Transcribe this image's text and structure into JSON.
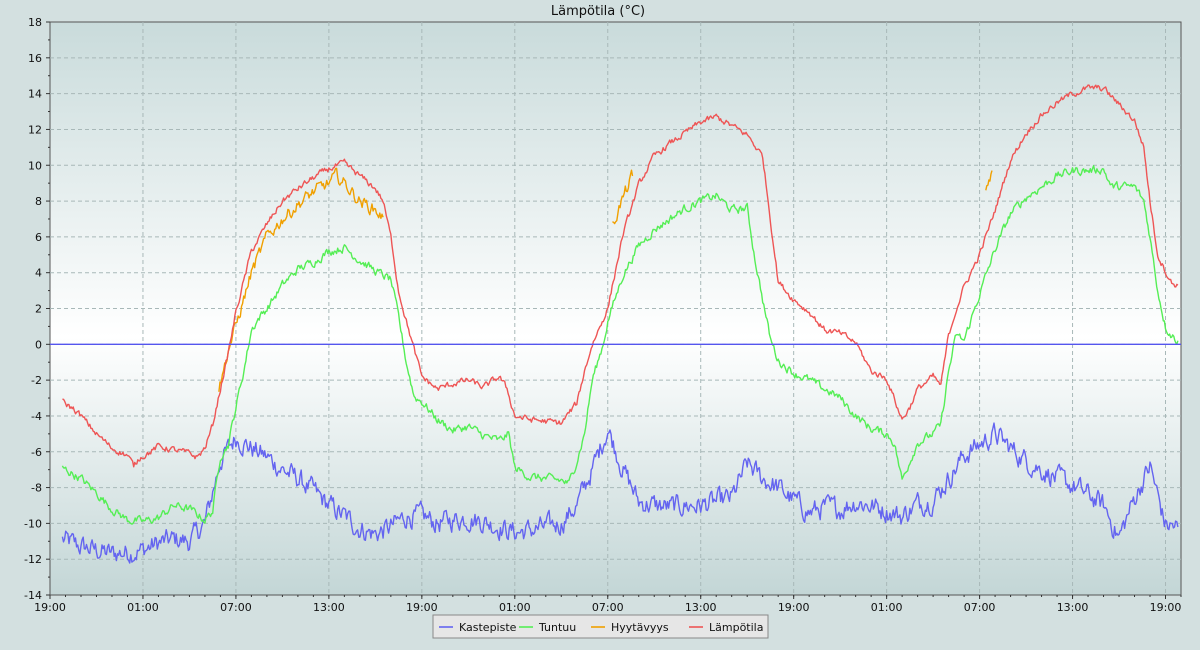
{
  "chart_data": {
    "type": "line",
    "title": "Lämpötila (°C)",
    "xlabel": "",
    "ylabel": "",
    "ylim": [
      -14,
      18
    ],
    "y_ticks": [
      -14,
      -12,
      -10,
      -8,
      -6,
      -4,
      -2,
      0,
      2,
      4,
      6,
      8,
      10,
      12,
      14,
      16,
      18
    ],
    "x_range_hours": [
      0,
      73
    ],
    "x_ticks": [
      {
        "h": 0,
        "label": "19:00"
      },
      {
        "h": 6,
        "label": "01:00"
      },
      {
        "h": 12,
        "label": "07:00"
      },
      {
        "h": 18,
        "label": "13:00"
      },
      {
        "h": 24,
        "label": "19:00"
      },
      {
        "h": 30,
        "label": "01:00"
      },
      {
        "h": 36,
        "label": "07:00"
      },
      {
        "h": 42,
        "label": "13:00"
      },
      {
        "h": 48,
        "label": "19:00"
      },
      {
        "h": 54,
        "label": "01:00"
      },
      {
        "h": 60,
        "label": "07:00"
      },
      {
        "h": 66,
        "label": "13:00"
      },
      {
        "h": 72,
        "label": "19:00"
      }
    ],
    "grid": true,
    "reference_line": {
      "y": 0,
      "color": "#5555ee"
    },
    "legend_position": "bottom-center",
    "series": [
      {
        "name": "Kastepiste",
        "color": "#6464f0",
        "noise": 0.5,
        "points": [
          [
            0.8,
            -10.9
          ],
          [
            2,
            -11.3
          ],
          [
            4,
            -11.7
          ],
          [
            6,
            -11.5
          ],
          [
            7,
            -11.1
          ],
          [
            8,
            -10.9
          ],
          [
            9,
            -11.0
          ],
          [
            10,
            -10.0
          ],
          [
            11,
            -6.5
          ],
          [
            12,
            -5.2
          ],
          [
            13,
            -5.8
          ],
          [
            14,
            -6.3
          ],
          [
            15,
            -7.0
          ],
          [
            16,
            -7.5
          ],
          [
            17,
            -8.2
          ],
          [
            18,
            -9.0
          ],
          [
            19,
            -9.6
          ],
          [
            20,
            -10.3
          ],
          [
            21,
            -10.6
          ],
          [
            22,
            -10.2
          ],
          [
            23,
            -9.6
          ],
          [
            24,
            -9.6
          ],
          [
            25,
            -10.0
          ],
          [
            26,
            -9.8
          ],
          [
            27,
            -9.7
          ],
          [
            28,
            -9.9
          ],
          [
            29,
            -10.2
          ],
          [
            30,
            -10.5
          ],
          [
            31,
            -10.4
          ],
          [
            32,
            -10.2
          ],
          [
            33,
            -10.0
          ],
          [
            34,
            -9.0
          ],
          [
            35,
            -7.0
          ],
          [
            36,
            -4.7
          ],
          [
            37,
            -7.0
          ],
          [
            38,
            -8.8
          ],
          [
            39,
            -9.0
          ],
          [
            40,
            -9.1
          ],
          [
            41,
            -9.0
          ],
          [
            42,
            -9.0
          ],
          [
            43,
            -8.8
          ],
          [
            44,
            -8.6
          ],
          [
            45,
            -6.7
          ],
          [
            46,
            -7.5
          ],
          [
            47,
            -8.0
          ],
          [
            48,
            -8.7
          ],
          [
            49,
            -9.4
          ],
          [
            50,
            -9.1
          ],
          [
            51,
            -9.2
          ],
          [
            52,
            -8.8
          ],
          [
            53,
            -9.0
          ],
          [
            54,
            -9.3
          ],
          [
            55,
            -9.6
          ],
          [
            56,
            -8.9
          ],
          [
            57,
            -8.7
          ],
          [
            58,
            -7.5
          ],
          [
            59,
            -6.2
          ],
          [
            60,
            -5.6
          ],
          [
            61,
            -5.0
          ],
          [
            62,
            -5.8
          ],
          [
            63,
            -6.5
          ],
          [
            64,
            -7.0
          ],
          [
            65,
            -7.5
          ],
          [
            66,
            -7.9
          ],
          [
            67,
            -8.4
          ],
          [
            68,
            -9.0
          ],
          [
            69,
            -10.8
          ],
          [
            70,
            -8.6
          ],
          [
            71,
            -6.8
          ],
          [
            72,
            -10.1
          ],
          [
            72.8,
            -10.2
          ]
        ]
      },
      {
        "name": "Tuntuu",
        "color": "#55ee55",
        "noise": 0.2,
        "points": [
          [
            0.8,
            -6.9
          ],
          [
            2,
            -7.5
          ],
          [
            3,
            -8.3
          ],
          [
            4,
            -9.2
          ],
          [
            5,
            -9.8
          ],
          [
            6,
            -9.9
          ],
          [
            7,
            -9.7
          ],
          [
            8,
            -9.0
          ],
          [
            9,
            -9.2
          ],
          [
            10,
            -9.8
          ],
          [
            10.5,
            -9.3
          ],
          [
            11,
            -6.2
          ],
          [
            11.5,
            -5.6
          ],
          [
            12,
            -3.5
          ],
          [
            12.5,
            -1.5
          ],
          [
            13,
            0.8
          ],
          [
            13.5,
            1.5
          ],
          [
            14,
            2.0
          ],
          [
            15,
            3.3
          ],
          [
            16,
            4.2
          ],
          [
            17,
            4.6
          ],
          [
            18,
            5.2
          ],
          [
            19,
            5.4
          ],
          [
            20,
            4.7
          ],
          [
            21,
            4.1
          ],
          [
            22,
            3.6
          ],
          [
            22.5,
            1.5
          ],
          [
            23,
            -1.0
          ],
          [
            23.5,
            -2.9
          ],
          [
            24,
            -3.2
          ],
          [
            25,
            -4.2
          ],
          [
            26,
            -4.8
          ],
          [
            27,
            -4.6
          ],
          [
            28,
            -5.1
          ],
          [
            29,
            -5.4
          ],
          [
            29.6,
            -5.0
          ],
          [
            30,
            -6.9
          ],
          [
            31,
            -7.4
          ],
          [
            32,
            -7.5
          ],
          [
            33,
            -7.6
          ],
          [
            33.5,
            -7.8
          ],
          [
            34,
            -6.5
          ],
          [
            34.5,
            -5.0
          ],
          [
            35,
            -2.0
          ],
          [
            35.7,
            0.0
          ],
          [
            36,
            1.3
          ],
          [
            37,
            3.9
          ],
          [
            38,
            5.5
          ],
          [
            39,
            6.4
          ],
          [
            40,
            7.0
          ],
          [
            41,
            7.6
          ],
          [
            42,
            8.0
          ],
          [
            43,
            8.3
          ],
          [
            44,
            7.5
          ],
          [
            45,
            7.6
          ],
          [
            45.5,
            4.8
          ],
          [
            46,
            2.5
          ],
          [
            46.5,
            0.3
          ],
          [
            47,
            -0.9
          ],
          [
            48,
            -1.6
          ],
          [
            49,
            -2.0
          ],
          [
            50,
            -2.5
          ],
          [
            51,
            -3.0
          ],
          [
            52,
            -4.0
          ],
          [
            53,
            -4.7
          ],
          [
            54,
            -5.0
          ],
          [
            54.5,
            -5.5
          ],
          [
            55,
            -7.6
          ],
          [
            55.5,
            -6.5
          ],
          [
            56,
            -5.5
          ],
          [
            57,
            -5.0
          ],
          [
            57.5,
            -4.5
          ],
          [
            58,
            -1.5
          ],
          [
            58.5,
            0.5
          ],
          [
            59,
            0.2
          ],
          [
            60,
            2.8
          ],
          [
            61,
            5.3
          ],
          [
            62,
            7.3
          ],
          [
            63,
            8.2
          ],
          [
            64,
            8.8
          ],
          [
            65,
            9.4
          ],
          [
            66,
            9.7
          ],
          [
            67,
            9.7
          ],
          [
            68,
            9.8
          ],
          [
            68.5,
            8.8
          ],
          [
            69,
            8.8
          ],
          [
            70,
            8.8
          ],
          [
            70.6,
            8.0
          ],
          [
            71,
            6.0
          ],
          [
            71.5,
            3.0
          ],
          [
            72,
            1.0
          ],
          [
            72.4,
            0.5
          ],
          [
            72.8,
            0.2
          ]
        ]
      },
      {
        "name": "Hyytävyys",
        "color": "#f0a000",
        "noise": 0.3,
        "points": [
          [
            10.9,
            -2.5
          ],
          [
            11.2,
            -1.5
          ],
          [
            11.5,
            -0.3
          ],
          [
            12,
            1.0
          ],
          [
            12.5,
            2.5
          ],
          [
            13,
            4.0
          ],
          [
            14,
            6.0
          ],
          [
            15,
            7.0
          ],
          [
            16,
            7.8
          ],
          [
            17,
            8.5
          ],
          [
            18,
            9.0
          ],
          [
            18.5,
            9.4
          ],
          [
            19,
            9.0
          ],
          [
            20,
            8.0
          ],
          [
            21,
            7.5
          ],
          [
            21.5,
            7.1
          ]
        ],
        "breaks": [
          [
            36.3,
            6.6
          ],
          [
            36.8,
            7.8
          ],
          [
            37.2,
            8.6
          ],
          [
            37.6,
            9.4
          ]
        ],
        "breaks2": [
          [
            60.4,
            8.6
          ],
          [
            60.8,
            9.7
          ]
        ]
      },
      {
        "name": "Lämpötila",
        "color": "#ee5555",
        "noise": 0.15,
        "points": [
          [
            0.8,
            -3.2
          ],
          [
            1.5,
            -3.6
          ],
          [
            2,
            -4.0
          ],
          [
            3,
            -5.0
          ],
          [
            4,
            -5.8
          ],
          [
            5,
            -6.2
          ],
          [
            5.4,
            -6.8
          ],
          [
            5.8,
            -6.3
          ],
          [
            6.5,
            -6.0
          ],
          [
            7,
            -5.7
          ],
          [
            8,
            -5.9
          ],
          [
            9,
            -6.1
          ],
          [
            9.5,
            -6.3
          ],
          [
            10,
            -5.8
          ],
          [
            10.5,
            -4.5
          ],
          [
            11,
            -2.5
          ],
          [
            11.5,
            -0.5
          ],
          [
            12,
            1.8
          ],
          [
            12.5,
            3.5
          ],
          [
            13,
            5.2
          ],
          [
            14,
            6.7
          ],
          [
            15,
            8.0
          ],
          [
            16,
            8.7
          ],
          [
            17,
            9.3
          ],
          [
            18,
            9.8
          ],
          [
            19,
            10.1
          ],
          [
            20,
            9.4
          ],
          [
            21,
            8.7
          ],
          [
            21.5,
            8.0
          ],
          [
            22,
            6.0
          ],
          [
            22.5,
            3.0
          ],
          [
            23,
            1.3
          ],
          [
            23.5,
            -0.3
          ],
          [
            24,
            -1.8
          ],
          [
            25,
            -2.5
          ],
          [
            26,
            -2.2
          ],
          [
            27,
            -2.0
          ],
          [
            28,
            -2.4
          ],
          [
            29,
            -1.8
          ],
          [
            29.5,
            -2.5
          ],
          [
            30,
            -4.0
          ],
          [
            31,
            -4.2
          ],
          [
            32,
            -4.3
          ],
          [
            33,
            -4.4
          ],
          [
            34,
            -3.3
          ],
          [
            34.5,
            -1.5
          ],
          [
            35,
            0.0
          ],
          [
            36,
            2.0
          ],
          [
            37,
            6.2
          ],
          [
            38,
            8.9
          ],
          [
            39,
            10.5
          ],
          [
            40,
            11.2
          ],
          [
            41,
            11.8
          ],
          [
            42,
            12.4
          ],
          [
            43,
            12.7
          ],
          [
            44,
            12.2
          ],
          [
            45,
            11.7
          ],
          [
            46,
            10.5
          ],
          [
            46.5,
            7.0
          ],
          [
            47,
            3.5
          ],
          [
            48,
            2.5
          ],
          [
            49,
            1.8
          ],
          [
            50,
            0.8
          ],
          [
            51,
            0.6
          ],
          [
            52,
            0.1
          ],
          [
            53,
            -1.5
          ],
          [
            54,
            -1.9
          ],
          [
            55,
            -4.2
          ],
          [
            55.5,
            -3.5
          ],
          [
            56,
            -2.5
          ],
          [
            57,
            -1.8
          ],
          [
            57.5,
            -2.3
          ],
          [
            58,
            0.5
          ],
          [
            58.5,
            2.0
          ],
          [
            59,
            3.2
          ],
          [
            60,
            5.0
          ],
          [
            61,
            7.5
          ],
          [
            62,
            10.3
          ],
          [
            63,
            11.8
          ],
          [
            64,
            12.8
          ],
          [
            65,
            13.5
          ],
          [
            66,
            14.0
          ],
          [
            67,
            14.3
          ],
          [
            68,
            14.3
          ],
          [
            69,
            13.4
          ],
          [
            70,
            12.5
          ],
          [
            70.6,
            11.0
          ],
          [
            71,
            8.0
          ],
          [
            71.5,
            5.0
          ],
          [
            72,
            4.1
          ],
          [
            72.4,
            3.4
          ],
          [
            72.8,
            3.3
          ]
        ]
      }
    ]
  }
}
